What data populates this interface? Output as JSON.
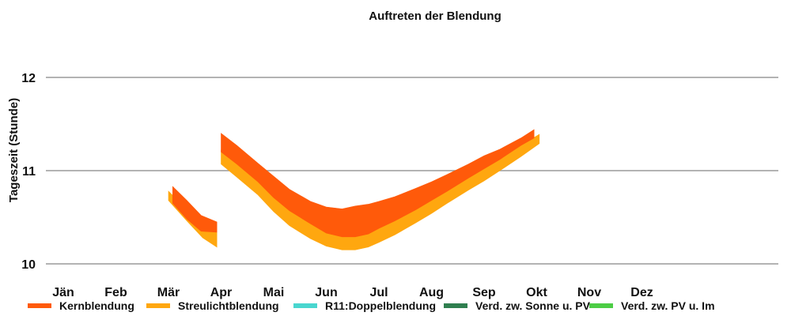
{
  "chart_data": {
    "type": "area",
    "title": "Auftreten der Blendung",
    "ylabel": "Tageszeit (Stunde)",
    "xlabel": "",
    "ylim": [
      10,
      12
    ],
    "yticks": [
      "10",
      "11",
      "12"
    ],
    "categories": [
      "Jän",
      "Feb",
      "Mär",
      "Apr",
      "Mai",
      "Jun",
      "Jul",
      "Aug",
      "Sep",
      "Okt",
      "Nov",
      "Dez"
    ],
    "grid": true,
    "legend_position": "bottom",
    "legend": [
      {
        "name": "Kernblendung",
        "color": "#ff5a0a"
      },
      {
        "name": "Streulichtblendung",
        "color": "#ffa70f"
      },
      {
        "name": "R11:Doppelblendung",
        "color": "#49d6cf"
      },
      {
        "name": "Verd. zw. Sonne u. PV",
        "color": "#2f7f4f"
      },
      {
        "name": "Verd. zw. PV u. Im",
        "color": "#4ccd45"
      }
    ],
    "series": [
      {
        "name": "Kernblendung",
        "color": "#ff5a0a",
        "segments": [
          [
            {
              "month": 2.08,
              "start": 10.65,
              "end": 10.83
            },
            {
              "month": 2.35,
              "start": 10.48,
              "end": 10.68
            },
            {
              "month": 2.62,
              "start": 10.35,
              "end": 10.52
            },
            {
              "month": 2.92,
              "start": 10.34,
              "end": 10.45
            }
          ],
          [
            {
              "month": 3.0,
              "start": 11.2,
              "end": 11.4
            },
            {
              "month": 3.3,
              "start": 11.07,
              "end": 11.27
            },
            {
              "month": 3.7,
              "start": 10.88,
              "end": 11.08
            },
            {
              "month": 4.0,
              "start": 10.71,
              "end": 10.94
            },
            {
              "month": 4.3,
              "start": 10.57,
              "end": 10.8
            },
            {
              "month": 4.7,
              "start": 10.43,
              "end": 10.67
            },
            {
              "month": 5.0,
              "start": 10.33,
              "end": 10.61
            },
            {
              "month": 5.3,
              "start": 10.29,
              "end": 10.59
            },
            {
              "month": 5.55,
              "start": 10.29,
              "end": 10.62
            },
            {
              "month": 5.8,
              "start": 10.32,
              "end": 10.64
            },
            {
              "month": 6.0,
              "start": 10.38,
              "end": 10.67
            },
            {
              "month": 6.3,
              "start": 10.46,
              "end": 10.72
            },
            {
              "month": 6.7,
              "start": 10.58,
              "end": 10.81
            },
            {
              "month": 7.0,
              "start": 10.68,
              "end": 10.88
            },
            {
              "month": 7.3,
              "start": 10.78,
              "end": 10.96
            },
            {
              "month": 7.7,
              "start": 10.92,
              "end": 11.07
            },
            {
              "month": 8.0,
              "start": 11.02,
              "end": 11.16
            },
            {
              "month": 8.3,
              "start": 11.12,
              "end": 11.23
            },
            {
              "month": 8.7,
              "start": 11.27,
              "end": 11.35
            },
            {
              "month": 8.95,
              "start": 11.35,
              "end": 11.44
            }
          ]
        ]
      },
      {
        "name": "Streulichtblendung",
        "color": "#ffa70f",
        "segments": [
          [
            {
              "month": 2.0,
              "start": 10.68,
              "end": 10.78
            },
            {
              "month": 2.35,
              "start": 10.46,
              "end": 10.58
            },
            {
              "month": 2.65,
              "start": 10.28,
              "end": 10.43
            },
            {
              "month": 2.92,
              "start": 10.18,
              "end": 10.34
            }
          ],
          [
            {
              "month": 3.0,
              "start": 11.07,
              "end": 11.22
            },
            {
              "month": 3.3,
              "start": 10.93,
              "end": 11.08
            },
            {
              "month": 3.7,
              "start": 10.74,
              "end": 10.89
            },
            {
              "month": 4.0,
              "start": 10.56,
              "end": 10.72
            },
            {
              "month": 4.3,
              "start": 10.41,
              "end": 10.58
            },
            {
              "month": 4.7,
              "start": 10.27,
              "end": 10.44
            },
            {
              "month": 5.0,
              "start": 10.19,
              "end": 10.34
            },
            {
              "month": 5.3,
              "start": 10.15,
              "end": 10.3
            },
            {
              "month": 5.55,
              "start": 10.15,
              "end": 10.29
            },
            {
              "month": 5.8,
              "start": 10.18,
              "end": 10.33
            },
            {
              "month": 6.0,
              "start": 10.23,
              "end": 10.38
            },
            {
              "month": 6.3,
              "start": 10.31,
              "end": 10.46
            },
            {
              "month": 6.7,
              "start": 10.44,
              "end": 10.58
            },
            {
              "month": 7.0,
              "start": 10.54,
              "end": 10.68
            },
            {
              "month": 7.3,
              "start": 10.65,
              "end": 10.78
            },
            {
              "month": 7.7,
              "start": 10.79,
              "end": 10.92
            },
            {
              "month": 8.0,
              "start": 10.89,
              "end": 11.02
            },
            {
              "month": 8.3,
              "start": 11.0,
              "end": 11.12
            },
            {
              "month": 8.7,
              "start": 11.15,
              "end": 11.27
            },
            {
              "month": 9.05,
              "start": 11.29,
              "end": 11.39
            }
          ]
        ]
      },
      {
        "name": "R11:Doppelblendung",
        "color": "#49d6cf",
        "segments": []
      },
      {
        "name": "Verd. zw. Sonne u. PV",
        "color": "#2f7f4f",
        "segments": []
      },
      {
        "name": "Verd. zw. PV u. Im",
        "color": "#4ccd45",
        "segments": []
      }
    ]
  }
}
